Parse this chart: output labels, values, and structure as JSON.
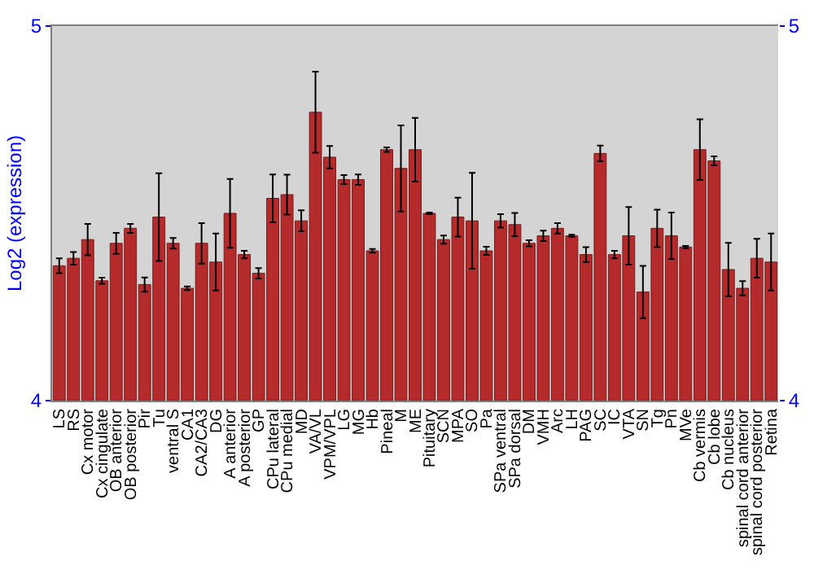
{
  "chart_data": {
    "type": "bar",
    "ylabel": "Log2 (expression)",
    "categories": [
      "LS",
      "RS",
      "Cx motor",
      "Cx cingulate",
      "OB anterior",
      "OB posterior",
      "Pir",
      "Tu",
      "ventral S",
      "CA1",
      "CA2/CA3",
      "DG",
      "A anterior",
      "A posterior",
      "GP",
      "CPu lateral",
      "CPu medial",
      "MD",
      "VA/VL",
      "VPM/VPL",
      "LG",
      "MG",
      "Hb",
      "Pineal",
      "M",
      "ME",
      "Pituitary",
      "SCN",
      "MPA",
      "SO",
      "Pa",
      "SPa ventral",
      "SPa dorsal",
      "DM",
      "VMH",
      "Arc",
      "LH",
      "PAG",
      "SC",
      "IC",
      "VTA",
      "SN",
      "Tg",
      "Pn",
      "MVe",
      "Cb vermis",
      "Cb lobe",
      "Cb nucleus",
      "spinal cord anterior",
      "spinal cord posterior",
      "Retina"
    ],
    "values": [
      4.36,
      4.38,
      4.43,
      4.32,
      4.42,
      4.46,
      4.31,
      4.49,
      4.42,
      4.3,
      4.42,
      4.37,
      4.5,
      4.39,
      4.34,
      4.54,
      4.55,
      4.48,
      4.77,
      4.65,
      4.59,
      4.59,
      4.4,
      4.67,
      4.62,
      4.67,
      4.5,
      4.43,
      4.49,
      4.48,
      4.4,
      4.48,
      4.47,
      4.42,
      4.44,
      4.46,
      4.44,
      4.39,
      4.66,
      4.39,
      4.44,
      4.29,
      4.46,
      4.44,
      4.41,
      4.67,
      4.64,
      4.35,
      4.3,
      4.38,
      4.37
    ],
    "errors": [
      0.02,
      0.017,
      0.042,
      0.008,
      0.028,
      0.012,
      0.019,
      0.117,
      0.014,
      0.005,
      0.054,
      0.076,
      0.092,
      0.01,
      0.014,
      0.064,
      0.053,
      0.028,
      0.108,
      0.03,
      0.012,
      0.014,
      0.005,
      0.006,
      0.115,
      0.085,
      0.002,
      0.011,
      0.052,
      0.128,
      0.011,
      0.018,
      0.031,
      0.008,
      0.014,
      0.014,
      0.003,
      0.02,
      0.021,
      0.01,
      0.077,
      0.07,
      0.05,
      0.062,
      0.003,
      0.081,
      0.012,
      0.071,
      0.019,
      0.052,
      0.076
    ],
    "color": "#b52a2a",
    "ylim": [
      4,
      5
    ],
    "yticks": [
      4,
      5
    ],
    "y2lim": [
      4,
      5
    ],
    "y2ticks": [
      4,
      5
    ],
    "grid": false
  }
}
